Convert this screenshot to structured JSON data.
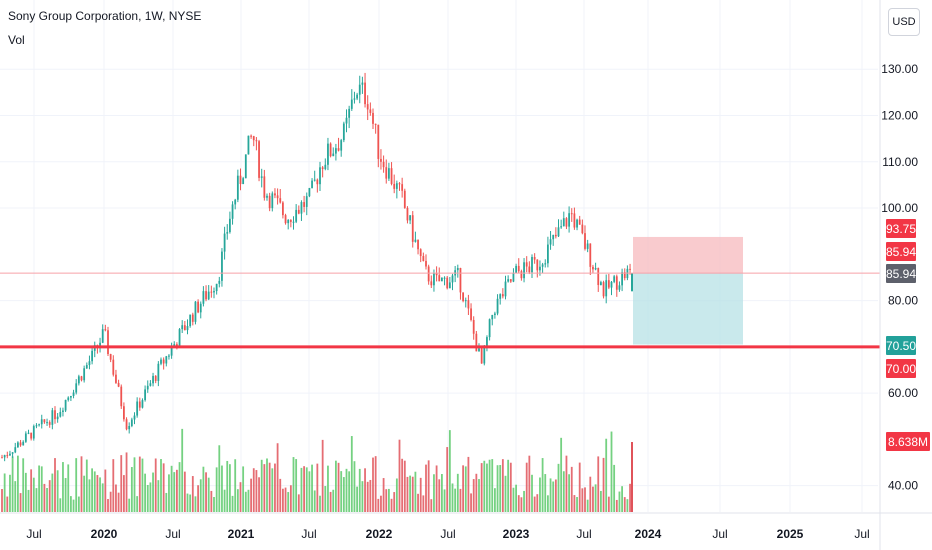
{
  "header": {
    "title": "Sony Group Corporation, 1W, NYSE",
    "volume_label": "Vol"
  },
  "currency": "USD",
  "colors": {
    "up": "#26a69a",
    "down": "#ef5350",
    "vol_up": "#5cc96b",
    "vol_down": "#e0535a",
    "support": "#f23645",
    "stop_zone": "#f7b9be",
    "target_zone": "#b7e2e6",
    "tag_red": "#f23645",
    "tag_gray": "#5d606b",
    "tag_teal": "#22a19a"
  },
  "chart_data": {
    "type": "candlestick",
    "y_ticks": [
      "130.00",
      "120.00",
      "110.00",
      "100.00",
      "80.00",
      "60.00",
      "40.00"
    ],
    "x_ticks": [
      "Jul",
      "2020",
      "Jul",
      "2021",
      "Jul",
      "2022",
      "Jul",
      "2023",
      "Jul",
      "2024",
      "Jul",
      "2025",
      "Jul"
    ],
    "price_tags": [
      {
        "label": "93.75",
        "value": 93.75,
        "color": "red"
      },
      {
        "label": "85.94",
        "value": 85.94,
        "color": "red"
      },
      {
        "label": "85.94",
        "value": 85.94,
        "color": "gray"
      },
      {
        "label": "70.50",
        "value": 70.5,
        "color": "teal"
      },
      {
        "label": "70.00",
        "value": 70.0,
        "color": "red"
      },
      {
        "label": "8.638M",
        "value": null,
        "color": "red"
      }
    ],
    "support_level": 70.0,
    "position": {
      "entry": 85.94,
      "stop": 93.75,
      "target": 70.5
    },
    "price_path": [
      [
        "2019-03",
        44
      ],
      [
        "2019-06",
        50
      ],
      [
        "2019-09",
        56
      ],
      [
        "2019-12",
        68
      ],
      [
        "2020-01",
        73
      ],
      [
        "2020-03",
        53
      ],
      [
        "2020-06",
        66
      ],
      [
        "2020-09",
        78
      ],
      [
        "2020-11",
        85
      ],
      [
        "2020-12",
        98
      ],
      [
        "2021-02",
        116
      ],
      [
        "2021-03",
        104
      ],
      [
        "2021-05",
        98
      ],
      [
        "2021-07",
        102
      ],
      [
        "2021-08",
        110
      ],
      [
        "2021-10",
        116
      ],
      [
        "2021-11",
        126
      ],
      [
        "2021-12",
        124
      ],
      [
        "2022-01",
        112
      ],
      [
        "2022-03",
        102
      ],
      [
        "2022-05",
        86
      ],
      [
        "2022-06",
        84
      ],
      [
        "2022-08",
        85
      ],
      [
        "2022-10",
        66
      ],
      [
        "2022-11",
        78
      ],
      [
        "2023-01",
        86
      ],
      [
        "2023-03",
        88
      ],
      [
        "2023-05",
        95
      ],
      [
        "2023-06",
        99
      ],
      [
        "2023-08",
        88
      ],
      [
        "2023-09",
        82
      ],
      [
        "2023-10",
        84
      ],
      [
        "2023-11",
        85.94
      ]
    ]
  }
}
